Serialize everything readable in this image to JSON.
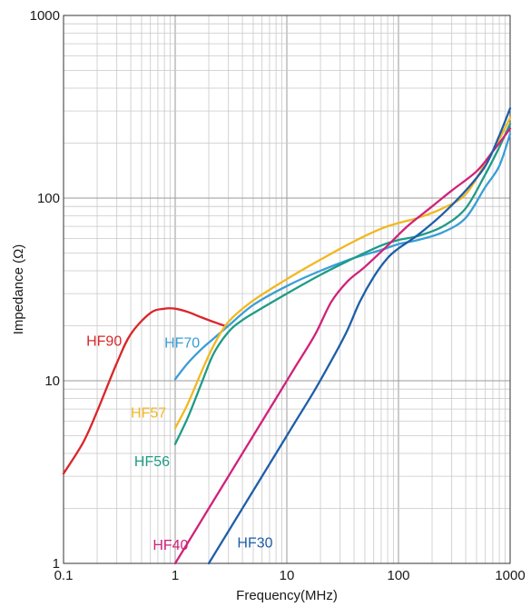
{
  "chart_data": {
    "type": "line",
    "xlabel": "Frequency(MHz)",
    "ylabel": "Impedance (Ω)",
    "x_scale": "log",
    "y_scale": "log",
    "xlim": [
      0.1,
      1000
    ],
    "ylim": [
      1,
      1000
    ],
    "grid": true,
    "x_ticks": [
      {
        "value": 0.1,
        "label": "0.1"
      },
      {
        "value": 1,
        "label": "1"
      },
      {
        "value": 10,
        "label": "10"
      },
      {
        "value": 100,
        "label": "100"
      },
      {
        "value": 1000,
        "label": "1000"
      }
    ],
    "y_ticks": [
      {
        "value": 1,
        "label": "1"
      },
      {
        "value": 10,
        "label": "10"
      },
      {
        "value": 100,
        "label": "100"
      },
      {
        "value": 1000,
        "label": "1000"
      }
    ],
    "series": [
      {
        "name": "HF90",
        "color": "#d9262a",
        "label_at": [
          0.16,
          15.5
        ],
        "x": [
          0.1,
          0.15,
          0.2,
          0.3,
          0.4,
          0.6,
          0.8,
          1.0,
          1.3,
          1.7,
          2.2,
          2.9
        ],
        "y": [
          3.1,
          4.6,
          6.8,
          12.5,
          18,
          23.5,
          24.8,
          24.8,
          23.8,
          22.3,
          21.0,
          19.8
        ]
      },
      {
        "name": "HF70",
        "color": "#3a9ed6",
        "label_at": [
          0.8,
          15.2
        ],
        "x": [
          1.0,
          1.3,
          1.7,
          2.2,
          3,
          5,
          10,
          20,
          40,
          70,
          100,
          150,
          250,
          400,
          600,
          800,
          1000
        ],
        "y": [
          10.2,
          12.5,
          14.8,
          17,
          20,
          26,
          33,
          40,
          47,
          52,
          56,
          59,
          65,
          78,
          115,
          150,
          225
        ]
      },
      {
        "name": "HF57",
        "color": "#f2b821",
        "label_at": [
          0.4,
          6.3
        ],
        "x": [
          1.0,
          1.3,
          1.7,
          2.2,
          3,
          5,
          10,
          20,
          40,
          70,
          100,
          150,
          250,
          400,
          600,
          800,
          1000
        ],
        "y": [
          5.5,
          7.5,
          11,
          15.5,
          21,
          27.5,
          36,
          46,
          58,
          68,
          73,
          78,
          88,
          105,
          155,
          210,
          275
        ]
      },
      {
        "name": "HF56",
        "color": "#1f9b86",
        "label_at": [
          0.43,
          3.4
        ],
        "x": [
          1.0,
          1.3,
          1.7,
          2.2,
          3,
          4,
          6,
          10,
          20,
          40,
          70,
          100,
          150,
          250,
          400,
          600,
          800,
          1000
        ],
        "y": [
          4.5,
          6.3,
          9.5,
          14,
          18.5,
          21.5,
          25,
          30,
          38,
          47,
          55,
          59,
          62,
          70,
          88,
          135,
          190,
          255
        ]
      },
      {
        "name": "HF40",
        "color": "#d0227a",
        "label_at": [
          0.63,
          1.19
        ],
        "x": [
          1.0,
          1.5,
          2,
          3,
          5,
          8,
          12,
          18,
          25,
          35,
          50,
          80,
          120,
          200,
          300,
          500,
          700,
          1000
        ],
        "y": [
          1.0,
          1.5,
          2.0,
          3.0,
          5.0,
          8.0,
          12,
          18,
          27,
          35,
          42,
          55,
          70,
          90,
          110,
          140,
          180,
          240
        ]
      },
      {
        "name": "HF30",
        "color": "#1e5ea8",
        "label_at": [
          3.6,
          1.22
        ],
        "x": [
          2.0,
          3,
          5,
          8,
          12,
          18,
          27,
          35,
          45,
          60,
          80,
          100,
          150,
          250,
          400,
          600,
          800,
          1000
        ],
        "y": [
          1.0,
          1.5,
          2.5,
          4.0,
          6.0,
          9.0,
          14,
          19,
          27,
          37,
          47,
          53,
          63,
          82,
          110,
          150,
          220,
          310
        ]
      }
    ]
  }
}
